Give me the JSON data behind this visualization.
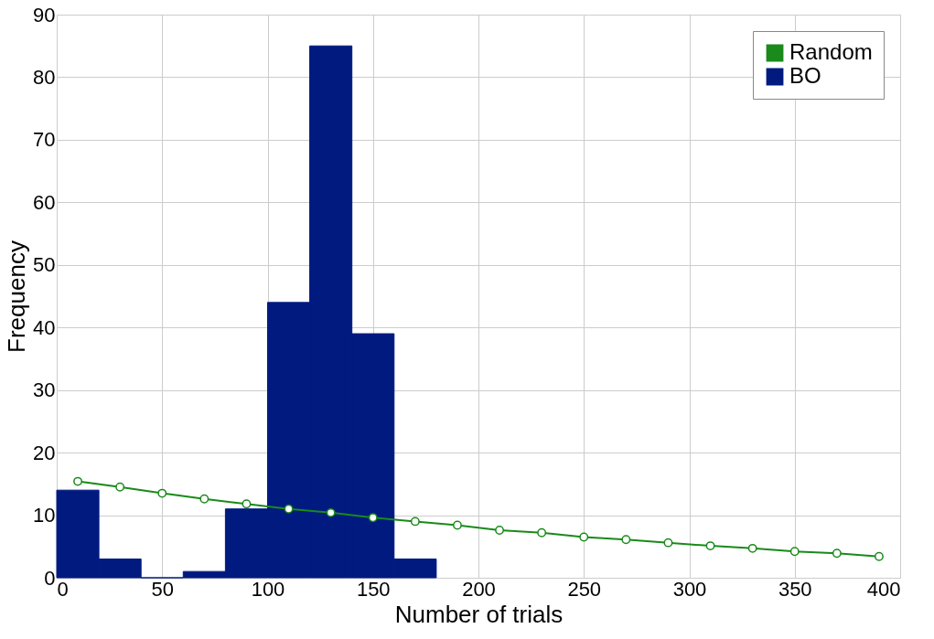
{
  "chart_data": {
    "type": "histogram",
    "xlabel": "Number of trials",
    "ylabel": "Frequency",
    "series": [
      {
        "name": "Random",
        "type": "line",
        "color": "#1a8a1a",
        "marker": "circle",
        "x": [
          10,
          30,
          50,
          70,
          90,
          110,
          130,
          150,
          170,
          190,
          210,
          230,
          250,
          270,
          290,
          310,
          330,
          350,
          370,
          390
        ],
        "values": [
          15.4,
          14.5,
          13.5,
          12.6,
          11.8,
          11.0,
          10.4,
          9.6,
          9.0,
          8.4,
          7.6,
          7.2,
          6.5,
          6.1,
          5.6,
          5.1,
          4.7,
          4.2,
          3.9,
          3.4
        ]
      },
      {
        "name": "BO",
        "color": "#001a80",
        "bins": [
          0,
          20,
          40,
          60,
          80,
          100,
          120,
          140,
          160,
          180
        ],
        "values": [
          14,
          3,
          0,
          1,
          11,
          44,
          85,
          39,
          3
        ]
      }
    ],
    "xlim": [
      0,
      400
    ],
    "xticks": [
      0,
      50,
      100,
      150,
      200,
      250,
      300,
      350,
      400
    ],
    "ylim": [
      0,
      90
    ],
    "yticks": [
      0,
      10,
      20,
      30,
      40,
      50,
      60,
      70,
      80,
      90
    ],
    "grid": true,
    "legend": "top right"
  }
}
